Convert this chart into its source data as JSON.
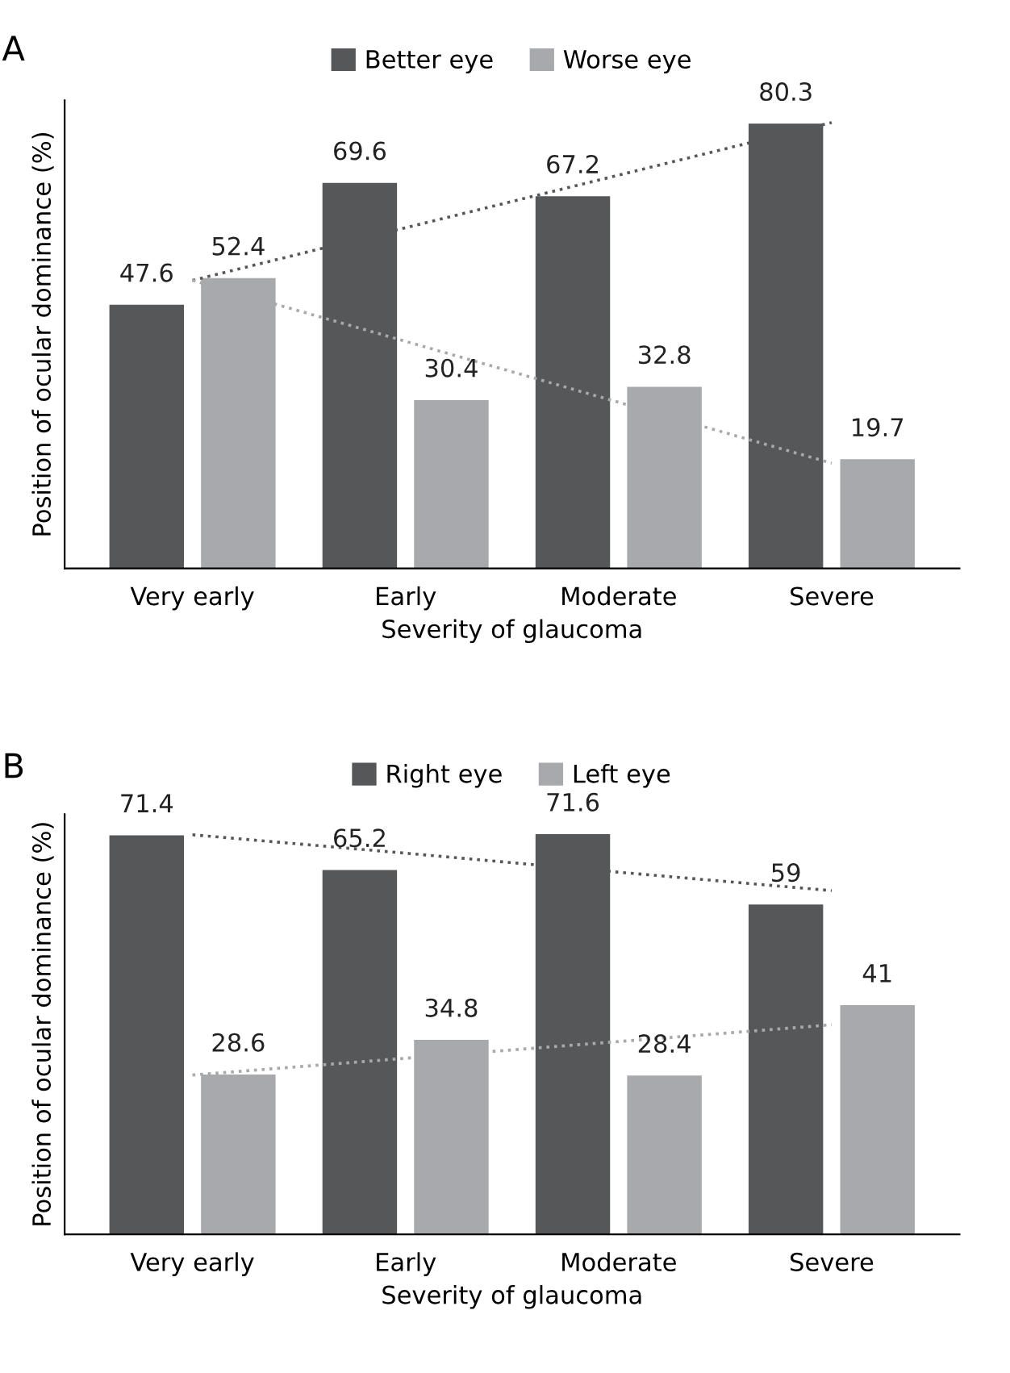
{
  "chart_data": [
    {
      "type": "bar",
      "title": "A",
      "xlabel": "Severity of glaucoma",
      "ylabel": "Position of ocular dominance (%)",
      "categories": [
        "Very early",
        "Early",
        "Moderate",
        "Severe"
      ],
      "series": [
        {
          "name": "Better eye",
          "color": "#555759",
          "values": [
            47.6,
            69.6,
            67.2,
            80.3
          ],
          "value_labels": [
            "47.6",
            "69.6",
            "67.2",
            "80.3"
          ]
        },
        {
          "name": "Worse eye",
          "color": "#a7a9ac",
          "values": [
            52.4,
            30.4,
            32.8,
            19.7
          ],
          "value_labels": [
            "52.4",
            "30.4",
            "32.8",
            "19.7"
          ]
        },
        {
          "type": "line",
          "color": "#555759",
          "values": [
            52,
            61.5,
            71,
            80.5
          ]
        },
        {
          "type": "line",
          "color": "#a7a9ac",
          "values": [
            52,
            41,
            30,
            19
          ]
        }
      ],
      "legend": "top",
      "tick_labels": "x",
      "line_style": "dotted"
    },
    {
      "type": "bar",
      "title": "B",
      "xlabel": "Severity of glaucoma",
      "ylabel": "Position of ocular dominance (%)",
      "categories": [
        "Very early",
        "Early",
        "Moderate",
        "Severe"
      ],
      "series": [
        {
          "name": "Right eye",
          "color": "#555759",
          "values": [
            71.4,
            65.2,
            71.6,
            59
          ],
          "value_labels": [
            "71.4",
            "65.2",
            "71.6",
            "59"
          ]
        },
        {
          "name": "Left eye",
          "color": "#a7a9ac",
          "values": [
            28.6,
            34.8,
            28.4,
            41
          ],
          "value_labels": [
            "28.6",
            "34.8",
            "28.4",
            "41"
          ]
        },
        {
          "type": "line",
          "color": "#555759",
          "values": [
            71.5,
            68.2,
            64.8,
            61.5
          ]
        },
        {
          "type": "line",
          "color": "#a7a9ac",
          "values": [
            28.5,
            31.5,
            34.5,
            37.5
          ]
        }
      ],
      "legend": "top",
      "tick_labels": "x",
      "line_style": "dotted"
    }
  ]
}
